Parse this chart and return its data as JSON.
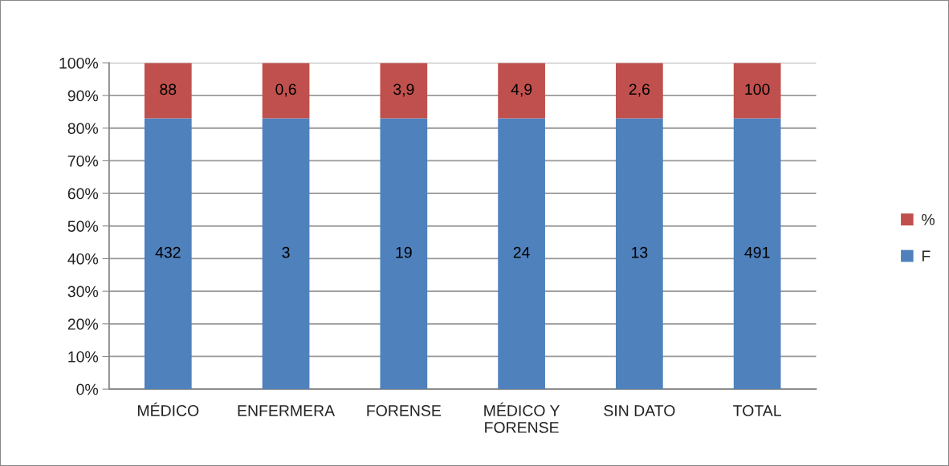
{
  "chart_data": {
    "type": "bar",
    "stacked": true,
    "categories": [
      "MÉDICO",
      "ENFERMERA",
      "FORENSE",
      "MÉDICO Y FORENSE",
      "SIN DATO",
      "TOTAL"
    ],
    "series": [
      {
        "name": "F",
        "color": "#4f81bd",
        "values": [
          83,
          83,
          83,
          83,
          83,
          83
        ]
      },
      {
        "name": "%",
        "color": "#c0504d",
        "values": [
          17,
          17,
          17,
          17,
          17,
          17
        ]
      }
    ],
    "annotations": [
      "432",
      "3",
      "19",
      "24",
      "13",
      "491",
      "88",
      "0,6",
      "3,9",
      "4,9",
      "2,6",
      "100"
    ],
    "ylim": [
      0,
      100
    ],
    "yticks": [
      {
        "value": 0,
        "label": "0%"
      },
      {
        "value": 10,
        "label": "10%"
      },
      {
        "value": 20,
        "label": "20%"
      },
      {
        "value": 30,
        "label": "30%"
      },
      {
        "value": 40,
        "label": "40%"
      },
      {
        "value": 50,
        "label": "50%"
      },
      {
        "value": 60,
        "label": "60%"
      },
      {
        "value": 70,
        "label": "70%"
      },
      {
        "value": 80,
        "label": "80%"
      },
      {
        "value": 90,
        "label": "90%"
      },
      {
        "value": 100,
        "label": "100%"
      }
    ],
    "grid": "y",
    "legend": "right"
  }
}
